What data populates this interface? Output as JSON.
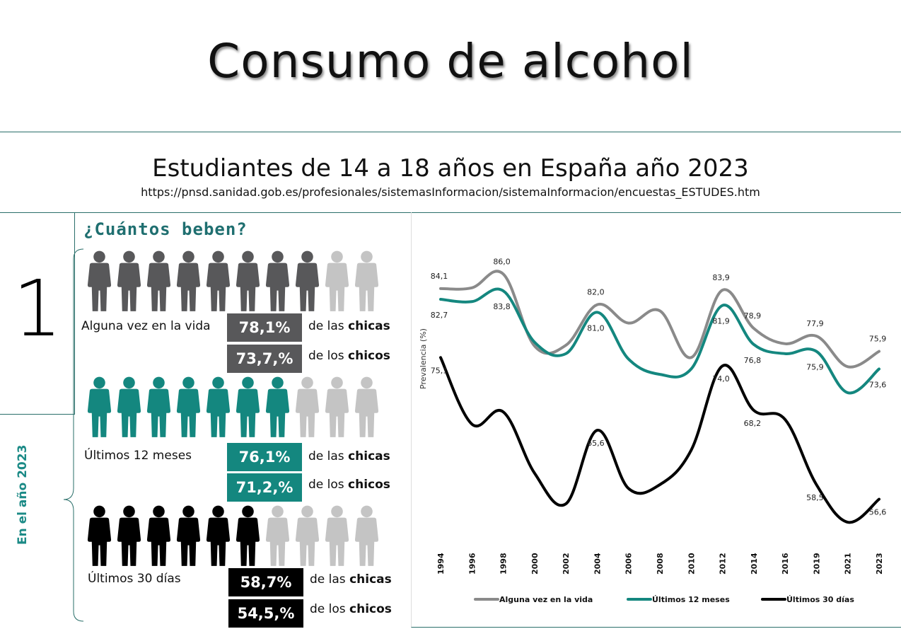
{
  "header": {
    "title": "Consumo de alcohol",
    "subtitle": "Estudiantes de 14 a 18 años en España año 2023",
    "source_url": "https://pnsd.sanidad.gob.es/profesionales/sistemasInformacion/sistemaInformacion/encuestas_ESTUDES.htm"
  },
  "panel": {
    "question": "¿Cuántos beben?",
    "number": "1",
    "year_label": "En el año 2023"
  },
  "colors": {
    "lifetime": "#58585a",
    "months12": "#14877f",
    "days30": "#000000",
    "inactive_person": "#c4c4c4",
    "accent": "#1f6f70"
  },
  "icons": {
    "person": "person-icon"
  },
  "groups": [
    {
      "label": "Alguna vez en la vida",
      "filled": 8,
      "total": 10,
      "girls_value": "78,1%",
      "boys_value": "73,7,%",
      "girls_prefix": "de las ",
      "girls_word": "chicas",
      "boys_prefix": "de los ",
      "boys_word": "chicos"
    },
    {
      "label": "Últimos 12 meses",
      "filled": 7,
      "total": 10,
      "girls_value": "76,1%",
      "boys_value": "71,2,%",
      "girls_prefix": "de las ",
      "girls_word": "chicas",
      "boys_prefix": "de los ",
      "boys_word": "chicos"
    },
    {
      "label": "Últimos 30 días",
      "filled": 6,
      "total": 10,
      "girls_value": "58,7%",
      "boys_value": "54,5,%",
      "girls_prefix": "de las ",
      "girls_word": "chicas",
      "boys_prefix": "de los ",
      "boys_word": "chicos"
    }
  ],
  "chart_data": {
    "type": "line",
    "ylabel": "Prevalencia (%)",
    "categories": [
      "1994",
      "1996",
      "1998",
      "2000",
      "2002",
      "2004",
      "2006",
      "2008",
      "2010",
      "2012",
      "2014",
      "2016",
      "2019",
      "2021",
      "2023"
    ],
    "ylim": [
      50,
      90
    ],
    "legend_position": "bottom",
    "series": [
      {
        "name": "Alguna vez en la vida",
        "color": "#8a8a8a",
        "values": [
          84.1,
          84.2,
          86.0,
          76.6,
          76.7,
          82.0,
          79.6,
          81.2,
          75.1,
          83.9,
          78.9,
          76.9,
          77.9,
          73.9,
          75.9
        ],
        "labels": [
          "84,1",
          "",
          "86,0",
          "",
          "",
          "82,0",
          "",
          "",
          "",
          "83,9",
          "78,9",
          "",
          "77,9",
          "",
          "75,9"
        ]
      },
      {
        "name": "Últimos 12 meses",
        "color": "#14877f",
        "values": [
          82.7,
          82.4,
          83.8,
          77.1,
          75.6,
          81.0,
          74.9,
          72.9,
          73.6,
          81.9,
          76.8,
          75.6,
          75.9,
          70.5,
          73.6
        ],
        "labels": [
          "82,7",
          "",
          "83,8",
          "",
          "",
          "81,0",
          "",
          "",
          "",
          "81,9",
          "76,8",
          "",
          "75,9",
          "",
          "73,6"
        ]
      },
      {
        "name": "Últimos 30 días",
        "color": "#000000",
        "values": [
          75.1,
          66.4,
          68.0,
          60.0,
          56.0,
          65.6,
          58.0,
          58.5,
          63.0,
          74.0,
          68.2,
          67.0,
          58.5,
          53.6,
          56.6
        ],
        "labels": [
          "75,1",
          "",
          "",
          "",
          "",
          "65,6",
          "",
          "",
          "",
          "74,0",
          "68,2",
          "",
          "58,5",
          "",
          "56,6"
        ]
      }
    ]
  }
}
